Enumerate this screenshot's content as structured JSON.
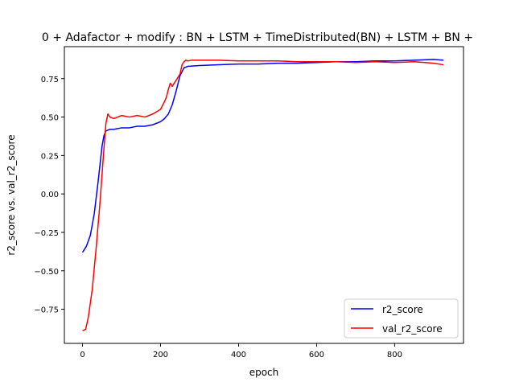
{
  "chart_data": {
    "type": "line",
    "title": "0 + Adafactor + modify : BN + LSTM + TimeDistributed(BN) + LSTM + BN +",
    "xlabel": "epoch",
    "ylabel": "r2_score vs. val_r2_score",
    "xlim": [
      -46.5,
      976.5
    ],
    "ylim": [
      -0.972,
      0.958
    ],
    "x_ticks": [
      0,
      200,
      400,
      600,
      800
    ],
    "y_ticks": [
      -0.75,
      -0.5,
      -0.25,
      0.0,
      0.25,
      0.5,
      0.75
    ],
    "y_tick_labels": [
      "−0.75",
      "−0.50",
      "−0.25",
      "0.00",
      "0.25",
      "0.50",
      "0.75"
    ],
    "grid": false,
    "legend": "lower-right",
    "series": [
      {
        "name": "r2_score",
        "color": "#0000ff",
        "x": [
          0,
          10,
          20,
          30,
          40,
          50,
          55,
          60,
          70,
          80,
          100,
          120,
          140,
          160,
          180,
          200,
          210,
          220,
          230,
          240,
          250,
          260,
          270,
          300,
          350,
          400,
          450,
          500,
          550,
          600,
          650,
          700,
          750,
          800,
          850,
          900,
          925
        ],
        "y": [
          -0.38,
          -0.34,
          -0.27,
          -0.13,
          0.08,
          0.31,
          0.38,
          0.41,
          0.42,
          0.42,
          0.43,
          0.43,
          0.44,
          0.44,
          0.45,
          0.47,
          0.49,
          0.52,
          0.58,
          0.67,
          0.77,
          0.82,
          0.83,
          0.835,
          0.84,
          0.845,
          0.845,
          0.85,
          0.85,
          0.855,
          0.86,
          0.86,
          0.865,
          0.865,
          0.87,
          0.875,
          0.87
        ]
      },
      {
        "name": "val_r2_score",
        "color": "#ff0000",
        "x": [
          0,
          8,
          15,
          25,
          35,
          45,
          55,
          60,
          65,
          70,
          80,
          90,
          100,
          120,
          140,
          160,
          180,
          200,
          210,
          215,
          220,
          225,
          230,
          240,
          250,
          255,
          260,
          265,
          270,
          280,
          300,
          350,
          400,
          450,
          500,
          550,
          600,
          650,
          700,
          750,
          800,
          850,
          900,
          925
        ],
        "y": [
          -0.89,
          -0.88,
          -0.8,
          -0.62,
          -0.35,
          -0.05,
          0.3,
          0.46,
          0.52,
          0.5,
          0.49,
          0.5,
          0.51,
          0.5,
          0.51,
          0.5,
          0.52,
          0.55,
          0.6,
          0.63,
          0.68,
          0.72,
          0.7,
          0.74,
          0.78,
          0.84,
          0.86,
          0.87,
          0.865,
          0.87,
          0.87,
          0.87,
          0.865,
          0.865,
          0.865,
          0.86,
          0.86,
          0.86,
          0.855,
          0.86,
          0.855,
          0.86,
          0.85,
          0.84
        ]
      }
    ]
  }
}
